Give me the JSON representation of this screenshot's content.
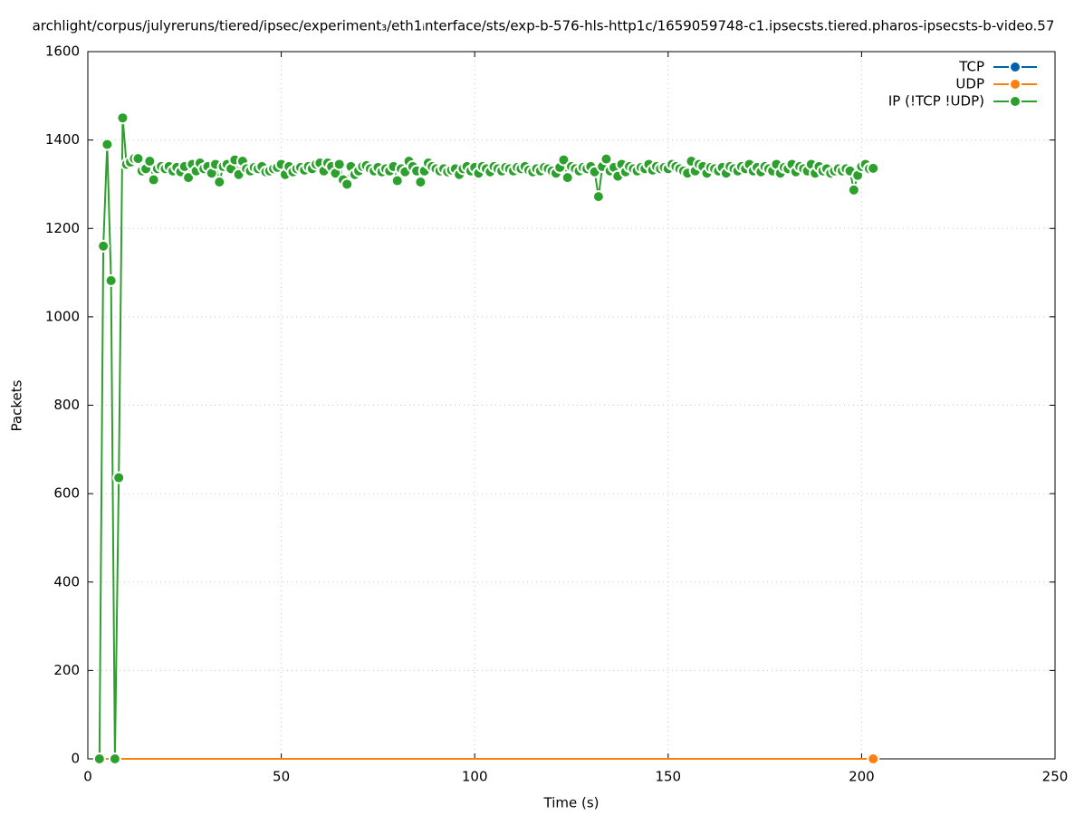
{
  "chart_data": {
    "type": "line",
    "title": "archlight/corpus/julyreruns/tiered/ipsec/experiment₃/eth1ᵢnterface/sts/exp-b-576-hls-http1c/1659059748-c1.ipsecsts.tiered.pharos-ipsecsts-b-video.57",
    "x_label": "Time (s)",
    "y_label": "Packets",
    "xlim": [
      0,
      250
    ],
    "xticks": [
      0,
      50,
      100,
      150,
      200,
      250
    ],
    "ylim": [
      0,
      1600
    ],
    "yticks": [
      0,
      200,
      400,
      600,
      800,
      1000,
      1200,
      1400,
      1600
    ],
    "grid": true,
    "legend": "top-right",
    "x": [
      3,
      4,
      5,
      6,
      7,
      8,
      9,
      10,
      11,
      12,
      13,
      14,
      15,
      16,
      17,
      18,
      19,
      20,
      21,
      22,
      23,
      24,
      25,
      26,
      27,
      28,
      29,
      30,
      31,
      32,
      33,
      34,
      35,
      36,
      37,
      38,
      39,
      40,
      41,
      42,
      43,
      44,
      45,
      46,
      47,
      48,
      49,
      50,
      51,
      52,
      53,
      54,
      55,
      56,
      57,
      58,
      59,
      60,
      61,
      62,
      63,
      64,
      65,
      66,
      67,
      68,
      69,
      70,
      71,
      72,
      73,
      74,
      75,
      76,
      77,
      78,
      79,
      80,
      81,
      82,
      83,
      84,
      85,
      86,
      87,
      88,
      89,
      90,
      91,
      92,
      93,
      94,
      95,
      96,
      97,
      98,
      99,
      100,
      101,
      102,
      103,
      104,
      105,
      106,
      107,
      108,
      109,
      110,
      111,
      112,
      113,
      114,
      115,
      116,
      117,
      118,
      119,
      120,
      121,
      122,
      123,
      124,
      125,
      126,
      127,
      128,
      129,
      130,
      131,
      132,
      133,
      134,
      135,
      136,
      137,
      138,
      139,
      140,
      141,
      142,
      143,
      144,
      145,
      146,
      147,
      148,
      149,
      150,
      151,
      152,
      153,
      154,
      155,
      156,
      157,
      158,
      159,
      160,
      161,
      162,
      163,
      164,
      165,
      166,
      167,
      168,
      169,
      170,
      171,
      172,
      173,
      174,
      175,
      176,
      177,
      178,
      179,
      180,
      181,
      182,
      183,
      184,
      185,
      186,
      187,
      188,
      189,
      190,
      191,
      192,
      193,
      194,
      195,
      196,
      197,
      198,
      199,
      200,
      201,
      202,
      203
    ],
    "series": [
      {
        "name": "TCP",
        "color": "#0060ad",
        "values": [
          0,
          0,
          0,
          0,
          0,
          0,
          0,
          0,
          0,
          0,
          0,
          0,
          0,
          0,
          0,
          0,
          0,
          0,
          0,
          0,
          0,
          0,
          0,
          0,
          0,
          0,
          0,
          0,
          0,
          0,
          0,
          0,
          0,
          0,
          0,
          0,
          0,
          0,
          0,
          0,
          0,
          0,
          0,
          0,
          0,
          0,
          0,
          0,
          0,
          0,
          0,
          0,
          0,
          0,
          0,
          0,
          0,
          0,
          0,
          0,
          0,
          0,
          0,
          0,
          0,
          0,
          0,
          0,
          0,
          0,
          0,
          0,
          0,
          0,
          0,
          0,
          0,
          0,
          0,
          0,
          0,
          0,
          0,
          0,
          0,
          0,
          0,
          0,
          0,
          0,
          0,
          0,
          0,
          0,
          0,
          0,
          0,
          0,
          0,
          0,
          0,
          0,
          0,
          0,
          0,
          0,
          0,
          0,
          0,
          0,
          0,
          0,
          0,
          0,
          0,
          0,
          0,
          0,
          0,
          0,
          0,
          0,
          0,
          0,
          0,
          0,
          0,
          0,
          0,
          0,
          0,
          0,
          0,
          0,
          0,
          0,
          0,
          0,
          0,
          0,
          0,
          0,
          0,
          0,
          0,
          0,
          0,
          0,
          0,
          0,
          0,
          0,
          0,
          0,
          0,
          0,
          0,
          0,
          0,
          0,
          0,
          0,
          0,
          0,
          0,
          0,
          0,
          0,
          0,
          0,
          0,
          0,
          0,
          0,
          0,
          0,
          0,
          0,
          0,
          0,
          0,
          0,
          0,
          0,
          0,
          0,
          0,
          0,
          0,
          0,
          0,
          0,
          0,
          0,
          0,
          0,
          0,
          0,
          0,
          0,
          0
        ]
      },
      {
        "name": "UDP",
        "color": "#ff7f0e",
        "values": [
          0,
          0,
          0,
          0,
          0,
          0,
          0,
          0,
          0,
          0,
          0,
          0,
          0,
          0,
          0,
          0,
          0,
          0,
          0,
          0,
          0,
          0,
          0,
          0,
          0,
          0,
          0,
          0,
          0,
          0,
          0,
          0,
          0,
          0,
          0,
          0,
          0,
          0,
          0,
          0,
          0,
          0,
          0,
          0,
          0,
          0,
          0,
          0,
          0,
          0,
          0,
          0,
          0,
          0,
          0,
          0,
          0,
          0,
          0,
          0,
          0,
          0,
          0,
          0,
          0,
          0,
          0,
          0,
          0,
          0,
          0,
          0,
          0,
          0,
          0,
          0,
          0,
          0,
          0,
          0,
          0,
          0,
          0,
          0,
          0,
          0,
          0,
          0,
          0,
          0,
          0,
          0,
          0,
          0,
          0,
          0,
          0,
          0,
          0,
          0,
          0,
          0,
          0,
          0,
          0,
          0,
          0,
          0,
          0,
          0,
          0,
          0,
          0,
          0,
          0,
          0,
          0,
          0,
          0,
          0,
          0,
          0,
          0,
          0,
          0,
          0,
          0,
          0,
          0,
          0,
          0,
          0,
          0,
          0,
          0,
          0,
          0,
          0,
          0,
          0,
          0,
          0,
          0,
          0,
          0,
          0,
          0,
          0,
          0,
          0,
          0,
          0,
          0,
          0,
          0,
          0,
          0,
          0,
          0,
          0,
          0,
          0,
          0,
          0,
          0,
          0,
          0,
          0,
          0,
          0,
          0,
          0,
          0,
          0,
          0,
          0,
          0,
          0,
          0,
          0,
          0,
          0,
          0,
          0,
          0,
          0,
          0,
          0,
          0,
          0,
          0,
          0,
          0,
          0,
          0,
          0,
          0,
          0,
          0,
          0,
          0
        ]
      },
      {
        "name": "IP (!TCP  !UDP)",
        "color": "#2ca02c",
        "values": [
          0,
          1160,
          1390,
          1082,
          0,
          636,
          1450,
          1345,
          1350,
          1358,
          1358,
          1330,
          1335,
          1352,
          1310,
          1335,
          1340,
          1335,
          1340,
          1330,
          1338,
          1328,
          1340,
          1315,
          1345,
          1330,
          1348,
          1335,
          1340,
          1325,
          1345,
          1305,
          1340,
          1345,
          1335,
          1355,
          1322,
          1352,
          1335,
          1330,
          1338,
          1335,
          1340,
          1328,
          1330,
          1335,
          1338,
          1345,
          1322,
          1340,
          1328,
          1335,
          1338,
          1332,
          1340,
          1335,
          1345,
          1348,
          1330,
          1348,
          1340,
          1325,
          1345,
          1310,
          1300,
          1340,
          1322,
          1330,
          1340,
          1342,
          1335,
          1330,
          1338,
          1328,
          1335,
          1330,
          1340,
          1308,
          1335,
          1328,
          1352,
          1340,
          1330,
          1305,
          1330,
          1348,
          1340,
          1335,
          1330,
          1335,
          1328,
          1332,
          1335,
          1322,
          1335,
          1340,
          1330,
          1338,
          1325,
          1340,
          1335,
          1328,
          1340,
          1335,
          1330,
          1338,
          1335,
          1330,
          1338,
          1335,
          1340,
          1332,
          1328,
          1335,
          1330,
          1338,
          1335,
          1330,
          1325,
          1338,
          1355,
          1315,
          1340,
          1335,
          1330,
          1338,
          1335,
          1340,
          1328,
          1272,
          1340,
          1357,
          1330,
          1338,
          1318,
          1345,
          1328,
          1340,
          1335,
          1330,
          1338,
          1335,
          1345,
          1332,
          1340,
          1335,
          1338,
          1335,
          1345,
          1340,
          1335,
          1330,
          1325,
          1352,
          1330,
          1345,
          1340,
          1325,
          1338,
          1335,
          1330,
          1338,
          1325,
          1340,
          1335,
          1330,
          1340,
          1335,
          1345,
          1330,
          1338,
          1328,
          1340,
          1335,
          1330,
          1345,
          1325,
          1338,
          1335,
          1345,
          1328,
          1340,
          1335,
          1330,
          1345,
          1325,
          1340,
          1330,
          1335,
          1325,
          1330,
          1335,
          1330,
          1335,
          1330,
          1287,
          1320,
          1340,
          1345,
          1335,
          1336
        ]
      }
    ]
  }
}
